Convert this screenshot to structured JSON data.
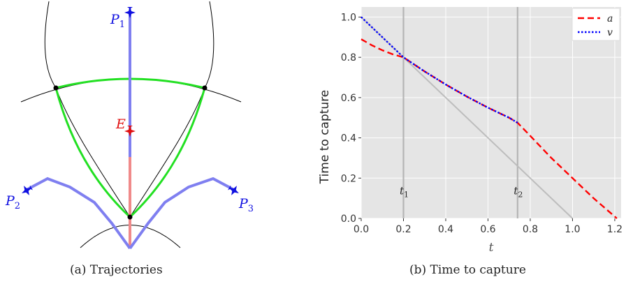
{
  "panel_a": {
    "caption": "(a) Trajectories",
    "agent_labels": [
      {
        "base": "P",
        "sub": "1"
      },
      {
        "base": "E",
        "sub": ""
      },
      {
        "base": "P",
        "sub": "2"
      },
      {
        "base": "P",
        "sub": "3"
      }
    ],
    "colors": {
      "pursuer": "#1010e0",
      "evader": "#e01010",
      "region": "#22e022",
      "pursuer_path": "#7f7ff0",
      "evader_path": "#f08a8a"
    }
  },
  "panel_b": {
    "caption": "(b) Time to capture"
  },
  "chart_data": {
    "type": "line",
    "xlabel": "t",
    "ylabel": "Time to capture",
    "xlim": [
      0,
      1.23
    ],
    "ylim": [
      0,
      1.05
    ],
    "x_ticks": [
      "0.0",
      "0.2",
      "0.4",
      "0.6",
      "0.8",
      "1.0",
      "1.2"
    ],
    "x_tick_values": [
      0,
      0.2,
      0.4,
      0.6,
      0.8,
      1.0,
      1.2
    ],
    "y_ticks": [
      "0.0",
      "0.2",
      "0.4",
      "0.6",
      "0.8",
      "1.0"
    ],
    "y_tick_values": [
      0,
      0.2,
      0.4,
      0.6,
      0.8,
      1.0
    ],
    "grid": true,
    "legend_placement": "top-right",
    "series": [
      {
        "name": "a",
        "color": "#ff0000",
        "style": "dashed",
        "x": [
          0,
          0.05,
          0.1,
          0.15,
          0.2,
          0.3,
          0.4,
          0.5,
          0.6,
          0.7,
          0.74,
          0.8,
          0.9,
          1.0,
          1.1,
          1.21
        ],
        "y": [
          0.89,
          0.86,
          0.835,
          0.815,
          0.8,
          0.73,
          0.665,
          0.605,
          0.55,
          0.5,
          0.475,
          0.41,
          0.3,
          0.2,
          0.1,
          0.0
        ]
      },
      {
        "name": "v",
        "color": "#0000ff",
        "style": "dotted",
        "x": [
          0,
          0.05,
          0.1,
          0.15,
          0.2,
          0.3,
          0.4,
          0.5,
          0.6,
          0.7,
          0.74
        ],
        "y": [
          1.0,
          0.95,
          0.9,
          0.85,
          0.8,
          0.73,
          0.665,
          0.605,
          0.55,
          0.5,
          0.475
        ]
      },
      {
        "name": "",
        "color": "#bdbdbd",
        "style": "solid",
        "x": [
          0,
          1.0
        ],
        "y": [
          1.0,
          0.0
        ]
      }
    ],
    "vlines": [
      {
        "x": 0.2,
        "label_base": "t",
        "label_sub": "1"
      },
      {
        "x": 0.74,
        "label_base": "t",
        "label_sub": "2"
      }
    ]
  }
}
